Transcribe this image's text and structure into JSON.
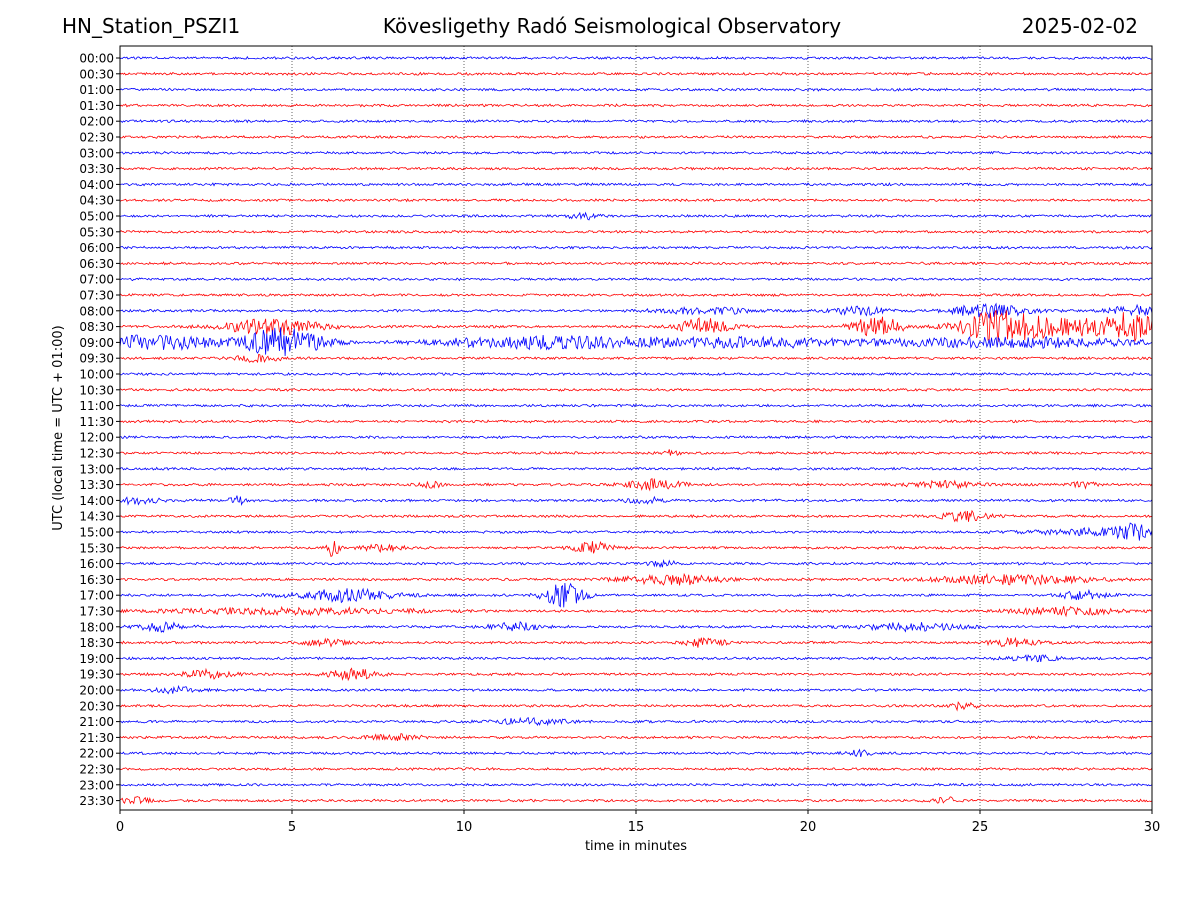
{
  "header": {
    "station": "HN_Station_PSZI1",
    "observatory": "Kövesligethy Radó Seismological Observatory",
    "date": "2025-02-02"
  },
  "chart_data": {
    "type": "line",
    "title": "Kövesligethy Radó Seismological Observatory",
    "xlabel": "time in minutes",
    "ylabel": "UTC (local time = UTC + 01:00)",
    "xlim": [
      0,
      30
    ],
    "xticks": [
      0,
      5,
      10,
      15,
      20,
      25,
      30
    ],
    "grid": "vertical dotted lines at x ticks",
    "colors": {
      "even_rows": "#0000ff",
      "odd_rows": "#ff0000"
    },
    "rows": [
      {
        "label": "00:00",
        "color": "blue",
        "events": []
      },
      {
        "label": "00:30",
        "color": "red",
        "events": []
      },
      {
        "label": "01:00",
        "color": "blue",
        "events": []
      },
      {
        "label": "01:30",
        "color": "red",
        "events": []
      },
      {
        "label": "02:00",
        "color": "blue",
        "events": []
      },
      {
        "label": "02:30",
        "color": "red",
        "events": []
      },
      {
        "label": "03:00",
        "color": "blue",
        "events": []
      },
      {
        "label": "03:30",
        "color": "red",
        "events": []
      },
      {
        "label": "04:00",
        "color": "blue",
        "events": []
      },
      {
        "label": "04:30",
        "color": "red",
        "events": []
      },
      {
        "label": "05:00",
        "color": "blue",
        "events": [
          {
            "t": 13.5,
            "amp": 3,
            "w": 0.6
          }
        ]
      },
      {
        "label": "05:30",
        "color": "red",
        "events": []
      },
      {
        "label": "06:00",
        "color": "blue",
        "events": []
      },
      {
        "label": "06:30",
        "color": "red",
        "events": []
      },
      {
        "label": "07:00",
        "color": "blue",
        "events": []
      },
      {
        "label": "07:30",
        "color": "red",
        "events": []
      },
      {
        "label": "08:00",
        "color": "blue",
        "events": [
          {
            "t": 17.0,
            "amp": 3,
            "w": 2
          },
          {
            "t": 21.5,
            "amp": 4,
            "w": 1
          },
          {
            "t": 25.3,
            "amp": 7,
            "w": 1.5
          },
          {
            "t": 29.5,
            "amp": 5,
            "w": 1
          }
        ]
      },
      {
        "label": "08:30",
        "color": "red",
        "events": [
          {
            "t": 4.5,
            "amp": 8,
            "w": 2
          },
          {
            "t": 17.0,
            "amp": 9,
            "w": 1
          },
          {
            "t": 22.0,
            "amp": 10,
            "w": 1
          },
          {
            "t": 25.5,
            "amp": 12,
            "w": 1.5
          },
          {
            "t": 27.5,
            "amp": 9,
            "w": 3
          },
          {
            "t": 29.5,
            "amp": 12,
            "w": 1
          }
        ]
      },
      {
        "label": "09:00",
        "color": "blue",
        "events": [
          {
            "t": 1.0,
            "amp": 7,
            "w": 3
          },
          {
            "t": 4.8,
            "amp": 16,
            "w": 1.5
          },
          {
            "t": 12.0,
            "amp": 6,
            "w": 4
          },
          {
            "t": 18.0,
            "amp": 5,
            "w": 5
          },
          {
            "t": 26.0,
            "amp": 5,
            "w": 5
          }
        ]
      },
      {
        "label": "09:30",
        "color": "red",
        "events": [
          {
            "t": 4.0,
            "amp": 3,
            "w": 1
          }
        ]
      },
      {
        "label": "10:00",
        "color": "blue",
        "events": []
      },
      {
        "label": "10:30",
        "color": "red",
        "events": []
      },
      {
        "label": "11:00",
        "color": "blue",
        "events": []
      },
      {
        "label": "11:30",
        "color": "red",
        "events": []
      },
      {
        "label": "12:00",
        "color": "blue",
        "events": []
      },
      {
        "label": "12:30",
        "color": "red",
        "events": [
          {
            "t": 16.0,
            "amp": 3,
            "w": 0.3
          }
        ]
      },
      {
        "label": "13:00",
        "color": "blue",
        "events": []
      },
      {
        "label": "13:30",
        "color": "red",
        "events": [
          {
            "t": 9.0,
            "amp": 3,
            "w": 0.5
          },
          {
            "t": 15.5,
            "amp": 5,
            "w": 1.2
          },
          {
            "t": 24.0,
            "amp": 3,
            "w": 1.5
          },
          {
            "t": 28.0,
            "amp": 3,
            "w": 0.5
          }
        ]
      },
      {
        "label": "14:00",
        "color": "blue",
        "events": [
          {
            "t": 0.5,
            "amp": 3,
            "w": 1
          },
          {
            "t": 3.4,
            "amp": 4,
            "w": 0.4
          },
          {
            "t": 15.3,
            "amp": 3,
            "w": 0.8
          }
        ]
      },
      {
        "label": "14:30",
        "color": "red",
        "events": [
          {
            "t": 24.5,
            "amp": 5,
            "w": 1
          }
        ]
      },
      {
        "label": "15:00",
        "color": "blue",
        "events": [
          {
            "t": 28.0,
            "amp": 3,
            "w": 2
          },
          {
            "t": 29.5,
            "amp": 7,
            "w": 0.8
          }
        ]
      },
      {
        "label": "15:30",
        "color": "red",
        "events": [
          {
            "t": 6.2,
            "amp": 12,
            "w": 0.2
          },
          {
            "t": 7.5,
            "amp": 3,
            "w": 1
          },
          {
            "t": 13.7,
            "amp": 6,
            "w": 0.8
          }
        ]
      },
      {
        "label": "16:00",
        "color": "blue",
        "events": [
          {
            "t": 15.8,
            "amp": 3,
            "w": 0.5
          }
        ]
      },
      {
        "label": "16:30",
        "color": "red",
        "events": [
          {
            "t": 16.0,
            "amp": 5,
            "w": 2
          },
          {
            "t": 26.0,
            "amp": 5,
            "w": 3
          }
        ]
      },
      {
        "label": "17:00",
        "color": "blue",
        "events": [
          {
            "t": 6.5,
            "amp": 6,
            "w": 2
          },
          {
            "t": 12.9,
            "amp": 12,
            "w": 0.8
          },
          {
            "t": 28.0,
            "amp": 4,
            "w": 1
          }
        ]
      },
      {
        "label": "17:30",
        "color": "red",
        "events": [
          {
            "t": 5.0,
            "amp": 3,
            "w": 5
          },
          {
            "t": 27.5,
            "amp": 4,
            "w": 2
          }
        ]
      },
      {
        "label": "18:00",
        "color": "blue",
        "events": [
          {
            "t": 1.2,
            "amp": 4,
            "w": 1
          },
          {
            "t": 11.5,
            "amp": 4,
            "w": 1
          },
          {
            "t": 23.0,
            "amp": 4,
            "w": 2
          }
        ]
      },
      {
        "label": "18:30",
        "color": "red",
        "events": [
          {
            "t": 6.0,
            "amp": 3,
            "w": 1
          },
          {
            "t": 17.0,
            "amp": 5,
            "w": 0.8
          },
          {
            "t": 26.0,
            "amp": 4,
            "w": 1
          }
        ]
      },
      {
        "label": "19:00",
        "color": "blue",
        "events": [
          {
            "t": 26.5,
            "amp": 3,
            "w": 1
          }
        ]
      },
      {
        "label": "19:30",
        "color": "red",
        "events": [
          {
            "t": 2.5,
            "amp": 4,
            "w": 1
          },
          {
            "t": 6.8,
            "amp": 5,
            "w": 1
          }
        ]
      },
      {
        "label": "20:00",
        "color": "blue",
        "events": [
          {
            "t": 1.5,
            "amp": 3,
            "w": 1
          }
        ]
      },
      {
        "label": "20:30",
        "color": "red",
        "events": [
          {
            "t": 24.5,
            "amp": 4,
            "w": 0.5
          }
        ]
      },
      {
        "label": "21:00",
        "color": "blue",
        "events": [
          {
            "t": 12.0,
            "amp": 3,
            "w": 1.5
          }
        ]
      },
      {
        "label": "21:30",
        "color": "red",
        "events": [
          {
            "t": 8.0,
            "amp": 3,
            "w": 1
          }
        ]
      },
      {
        "label": "22:00",
        "color": "blue",
        "events": [
          {
            "t": 21.5,
            "amp": 3,
            "w": 0.5
          }
        ]
      },
      {
        "label": "22:30",
        "color": "red",
        "events": []
      },
      {
        "label": "23:00",
        "color": "blue",
        "events": []
      },
      {
        "label": "23:30",
        "color": "red",
        "events": [
          {
            "t": 0.5,
            "amp": 3,
            "w": 0.6
          },
          {
            "t": 24.0,
            "amp": 3,
            "w": 0.5
          }
        ]
      }
    ]
  }
}
